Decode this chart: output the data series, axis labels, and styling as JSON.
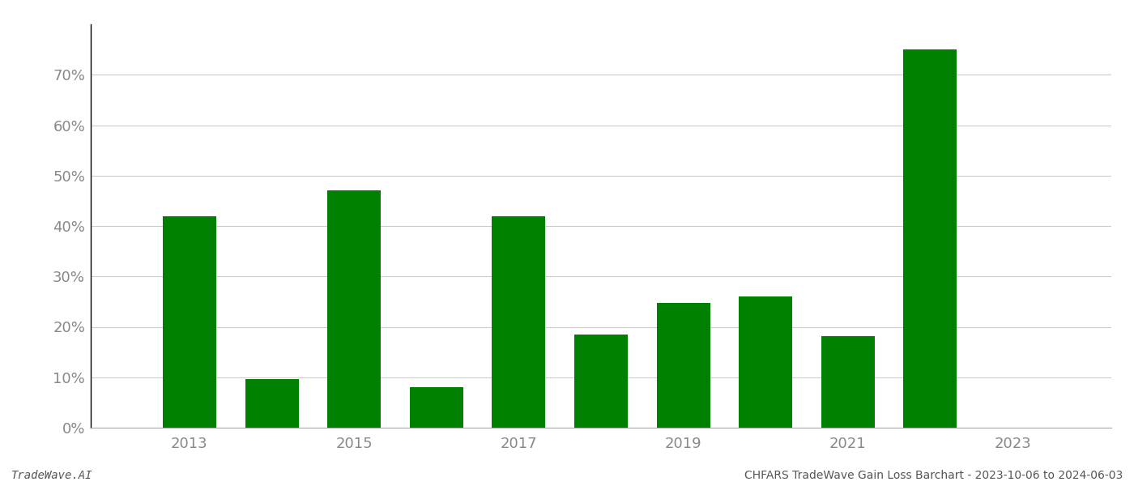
{
  "years": [
    2013,
    2014,
    2015,
    2016,
    2017,
    2018,
    2019,
    2020,
    2021,
    2022,
    2023
  ],
  "values": [
    0.42,
    0.097,
    0.47,
    0.08,
    0.42,
    0.185,
    0.248,
    0.261,
    0.182,
    0.75,
    0.0
  ],
  "bar_color": "#008000",
  "background_color": "#ffffff",
  "grid_color": "#cccccc",
  "ylabel_color": "#888888",
  "xlabel_color": "#888888",
  "ylim": [
    0,
    0.8
  ],
  "yticks": [
    0.0,
    0.1,
    0.2,
    0.3,
    0.4,
    0.5,
    0.6,
    0.7
  ],
  "xtick_years": [
    2013,
    2015,
    2017,
    2019,
    2021,
    2023
  ],
  "footer_left": "TradeWave.AI",
  "footer_right": "CHFARS TradeWave Gain Loss Barchart - 2023-10-06 to 2024-06-03",
  "xlim": [
    2011.8,
    2024.2
  ],
  "bar_width": 0.65,
  "spine_color": "#000000",
  "tick_label_fontsize": 13
}
